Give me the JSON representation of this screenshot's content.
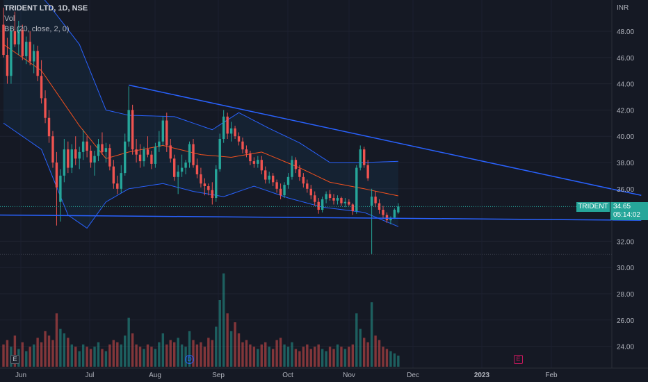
{
  "header": {
    "symbol_line": "TRIDENT LTD, 1D, NSE",
    "volume_label": "Vol",
    "indicator_label": "BB (20, close, 2, 0)"
  },
  "price_axis": {
    "currency": "INR",
    "ticks": [
      "48.00",
      "46.00",
      "44.00",
      "42.00",
      "40.00",
      "38.00",
      "36.00",
      "32.00",
      "30.00",
      "28.00",
      "26.00",
      "24.00"
    ]
  },
  "time_axis": {
    "ticks": [
      "Jun",
      "Jul",
      "Aug",
      "Sep",
      "Oct",
      "Nov",
      "Dec",
      "2023",
      "Feb"
    ]
  },
  "current": {
    "symbol_tag": "TRIDENT",
    "price": "34.65",
    "countdown": "05:14:02"
  },
  "markers": {
    "earnings_1": "E",
    "dividend": "D",
    "earnings_2": "E"
  },
  "colors": {
    "background": "#151924",
    "up": "#26a69a",
    "down": "#ef5350",
    "bb_band": "#2962ff",
    "bb_basis": "#f4511e",
    "trendline": "#2962ff"
  },
  "chart_data": {
    "type": "candlestick",
    "title": "TRIDENT LTD, 1D, NSE",
    "ylabel": "INR",
    "ylim": [
      22.5,
      49.5
    ],
    "x_ticks": [
      "Jun",
      "Jul",
      "Aug",
      "Sep",
      "Oct",
      "Nov",
      "Dec",
      "2023",
      "Feb"
    ],
    "candles": [
      [
        48.5,
        49.8,
        46.0,
        46.2
      ],
      [
        46.2,
        47.5,
        44.0,
        44.6
      ],
      [
        44.6,
        48.4,
        44.0,
        48.0
      ],
      [
        48.0,
        49.5,
        46.8,
        47.0
      ],
      [
        47.0,
        48.8,
        46.2,
        48.1
      ],
      [
        48.1,
        48.5,
        45.8,
        46.1
      ],
      [
        46.1,
        47.6,
        45.5,
        47.2
      ],
      [
        47.2,
        48.0,
        45.4,
        45.7
      ],
      [
        45.7,
        47.0,
        44.8,
        46.5
      ],
      [
        46.5,
        46.9,
        44.2,
        44.6
      ],
      [
        44.6,
        45.8,
        42.5,
        42.9
      ],
      [
        42.9,
        43.5,
        41.0,
        41.4
      ],
      [
        41.4,
        42.0,
        39.5,
        40.0
      ],
      [
        40.0,
        40.4,
        37.6,
        38.0
      ],
      [
        38.0,
        38.8,
        33.2,
        36.1
      ],
      [
        35.0,
        37.5,
        33.5,
        37.0
      ],
      [
        37.0,
        39.8,
        36.5,
        39.0
      ],
      [
        39.0,
        39.6,
        37.2,
        37.6
      ],
      [
        37.6,
        39.4,
        37.2,
        39.0
      ],
      [
        39.0,
        40.0,
        37.8,
        38.3
      ],
      [
        38.3,
        39.2,
        37.5,
        38.8
      ],
      [
        38.8,
        40.5,
        38.2,
        39.6
      ],
      [
        39.6,
        40.0,
        38.4,
        38.9
      ],
      [
        38.9,
        39.3,
        37.6,
        38.0
      ],
      [
        38.0,
        38.9,
        37.0,
        38.5
      ],
      [
        38.5,
        39.8,
        38.1,
        39.4
      ],
      [
        39.4,
        40.3,
        38.6,
        38.8
      ],
      [
        38.8,
        39.5,
        38.0,
        39.1
      ],
      [
        39.1,
        39.4,
        37.4,
        37.7
      ],
      [
        37.7,
        38.2,
        36.0,
        36.4
      ],
      [
        36.4,
        37.0,
        35.6,
        36.0
      ],
      [
        36.0,
        37.8,
        35.7,
        37.2
      ],
      [
        37.2,
        40.2,
        37.0,
        39.6
      ],
      [
        39.6,
        43.8,
        39.2,
        42.0
      ],
      [
        42.0,
        42.4,
        38.6,
        39.0
      ],
      [
        39.0,
        39.8,
        38.0,
        38.6
      ],
      [
        38.6,
        39.4,
        37.6,
        38.1
      ],
      [
        38.1,
        39.2,
        37.7,
        39.0
      ],
      [
        39.0,
        40.0,
        38.4,
        38.6
      ],
      [
        38.6,
        38.9,
        37.5,
        37.9
      ],
      [
        37.9,
        39.5,
        37.6,
        39.2
      ],
      [
        39.2,
        40.4,
        38.8,
        39.6
      ],
      [
        39.6,
        41.5,
        39.3,
        41.2
      ],
      [
        41.2,
        41.8,
        38.8,
        39.3
      ],
      [
        39.3,
        39.8,
        38.0,
        38.3
      ],
      [
        38.3,
        38.6,
        36.6,
        36.9
      ],
      [
        36.9,
        37.8,
        35.6,
        37.3
      ],
      [
        37.3,
        38.6,
        36.9,
        37.6
      ],
      [
        37.6,
        38.2,
        37.1,
        38.0
      ],
      [
        38.0,
        39.6,
        37.6,
        39.4
      ],
      [
        39.4,
        39.8,
        37.6,
        37.8
      ],
      [
        37.8,
        38.3,
        36.8,
        37.1
      ],
      [
        37.1,
        37.6,
        36.1,
        36.4
      ],
      [
        36.4,
        36.8,
        35.5,
        36.2
      ],
      [
        36.2,
        36.4,
        35.5,
        35.9
      ],
      [
        35.9,
        36.5,
        34.8,
        35.3
      ],
      [
        35.3,
        37.8,
        35.0,
        37.5
      ],
      [
        37.5,
        40.2,
        37.3,
        39.8
      ],
      [
        39.8,
        42.0,
        39.5,
        41.5
      ],
      [
        41.5,
        41.8,
        39.8,
        40.2
      ],
      [
        40.2,
        41.1,
        39.6,
        40.6
      ],
      [
        40.6,
        40.8,
        39.8,
        40.0
      ],
      [
        40.0,
        40.3,
        39.3,
        39.6
      ],
      [
        39.6,
        39.9,
        38.7,
        39.0
      ],
      [
        39.0,
        39.3,
        38.4,
        38.7
      ],
      [
        38.7,
        38.9,
        37.8,
        38.1
      ],
      [
        38.1,
        38.4,
        37.6,
        37.9
      ],
      [
        37.9,
        38.5,
        37.6,
        38.2
      ],
      [
        38.2,
        38.5,
        37.1,
        37.4
      ],
      [
        37.4,
        37.7,
        36.4,
        36.7
      ],
      [
        36.7,
        37.3,
        36.4,
        37.0
      ],
      [
        37.0,
        37.2,
        36.2,
        36.5
      ],
      [
        36.5,
        36.7,
        35.7,
        36.0
      ],
      [
        36.0,
        36.4,
        35.2,
        35.5
      ],
      [
        35.5,
        36.5,
        35.3,
        36.3
      ],
      [
        36.3,
        37.2,
        36.0,
        36.9
      ],
      [
        36.9,
        38.5,
        36.7,
        38.2
      ],
      [
        38.2,
        38.4,
        37.2,
        37.5
      ],
      [
        37.5,
        37.8,
        36.6,
        36.9
      ],
      [
        36.9,
        37.2,
        36.1,
        36.4
      ],
      [
        36.4,
        36.7,
        35.7,
        36.0
      ],
      [
        36.0,
        36.3,
        35.2,
        35.5
      ],
      [
        35.5,
        35.8,
        34.7,
        35.0
      ],
      [
        35.0,
        35.3,
        34.1,
        34.4
      ],
      [
        34.4,
        35.4,
        34.2,
        35.2
      ],
      [
        35.2,
        35.8,
        34.9,
        35.6
      ],
      [
        35.6,
        35.9,
        35.1,
        35.3
      ],
      [
        35.3,
        35.6,
        34.8,
        35.1
      ],
      [
        35.1,
        35.5,
        34.8,
        35.3
      ],
      [
        35.3,
        35.4,
        34.7,
        34.9
      ],
      [
        34.9,
        35.3,
        34.6,
        35.0
      ],
      [
        35.0,
        35.2,
        34.7,
        34.8
      ],
      [
        34.8,
        34.9,
        34.0,
        34.3
      ],
      [
        34.3,
        37.8,
        34.1,
        37.6
      ],
      [
        37.6,
        39.3,
        37.4,
        39.0
      ],
      [
        39.0,
        39.2,
        37.6,
        37.8
      ],
      [
        37.8,
        38.2,
        36.6,
        36.8
      ],
      [
        34.7,
        36.0,
        31.0,
        35.4
      ],
      [
        35.4,
        35.8,
        34.6,
        34.9
      ],
      [
        34.9,
        35.2,
        34.1,
        34.4
      ],
      [
        34.4,
        34.7,
        33.7,
        34.0
      ],
      [
        34.0,
        34.2,
        33.4,
        33.6
      ],
      [
        33.6,
        33.9,
        33.3,
        33.8
      ],
      [
        33.8,
        34.5,
        33.7,
        34.4
      ],
      [
        34.2,
        34.9,
        34.1,
        34.65
      ]
    ],
    "volume": [
      1.0,
      1.2,
      0.9,
      1.4,
      0.8,
      1.1,
      0.7,
      0.9,
      1.0,
      1.3,
      1.1,
      1.6,
      1.4,
      1.2,
      2.4,
      1.7,
      1.5,
      1.3,
      1.0,
      0.9,
      0.7,
      1.0,
      0.9,
      0.8,
      0.9,
      1.1,
      0.8,
      0.7,
      1.0,
      1.2,
      1.1,
      1.0,
      1.4,
      2.2,
      1.5,
      1.0,
      0.9,
      0.8,
      1.0,
      0.9,
      0.8,
      1.1,
      1.5,
      1.0,
      1.2,
      1.1,
      1.3,
      1.0,
      0.9,
      1.6,
      1.2,
      1.0,
      1.1,
      0.9,
      1.3,
      1.2,
      1.8,
      3.0,
      4.2,
      2.4,
      1.6,
      2.0,
      1.5,
      1.1,
      1.2,
      1.0,
      0.9,
      0.8,
      1.0,
      1.1,
      0.9,
      0.8,
      1.2,
      1.3,
      1.0,
      0.9,
      1.1,
      0.8,
      0.7,
      0.9,
      1.0,
      0.8,
      0.9,
      1.0,
      0.8,
      0.7,
      0.9,
      0.8,
      1.0,
      0.9,
      0.8,
      0.9,
      1.0,
      2.4,
      1.7,
      1.3,
      1.1,
      2.9,
      1.4,
      1.2,
      0.9,
      0.8,
      0.7,
      0.6,
      0.5
    ],
    "bb_upper_anchor": [
      [
        0,
        54.0
      ],
      [
        12,
        50.0
      ],
      [
        20,
        47.0
      ],
      [
        27,
        42.0
      ],
      [
        33,
        41.6
      ],
      [
        45,
        41.5
      ],
      [
        55,
        40.5
      ],
      [
        62,
        41.8
      ],
      [
        70,
        40.6
      ],
      [
        78,
        39.5
      ],
      [
        86,
        38.0
      ],
      [
        95,
        38.0
      ],
      [
        105,
        38.1
      ]
    ],
    "bb_basis_anchor": [
      [
        0,
        47.0
      ],
      [
        10,
        45.0
      ],
      [
        20,
        40.8
      ],
      [
        27,
        38.3
      ],
      [
        33,
        38.8
      ],
      [
        42,
        39.3
      ],
      [
        52,
        38.6
      ],
      [
        60,
        38.4
      ],
      [
        68,
        38.8
      ],
      [
        78,
        37.6
      ],
      [
        86,
        36.5
      ],
      [
        95,
        36.0
      ],
      [
        105,
        35.4
      ]
    ],
    "bb_lower_anchor": [
      [
        0,
        41.0
      ],
      [
        10,
        39.0
      ],
      [
        17,
        34.0
      ],
      [
        22,
        33.0
      ],
      [
        27,
        35.0
      ],
      [
        33,
        36.0
      ],
      [
        42,
        36.4
      ],
      [
        50,
        35.8
      ],
      [
        58,
        35.4
      ],
      [
        66,
        36.2
      ],
      [
        75,
        35.3
      ],
      [
        84,
        34.6
      ],
      [
        95,
        34.2
      ],
      [
        105,
        33.0
      ]
    ],
    "trendlines": [
      {
        "from": [
          33,
          43.9
        ],
        "to": [
          168,
          35.5
        ]
      },
      {
        "from": [
          0,
          34.0
        ],
        "to": [
          168,
          33.6
        ]
      }
    ]
  }
}
